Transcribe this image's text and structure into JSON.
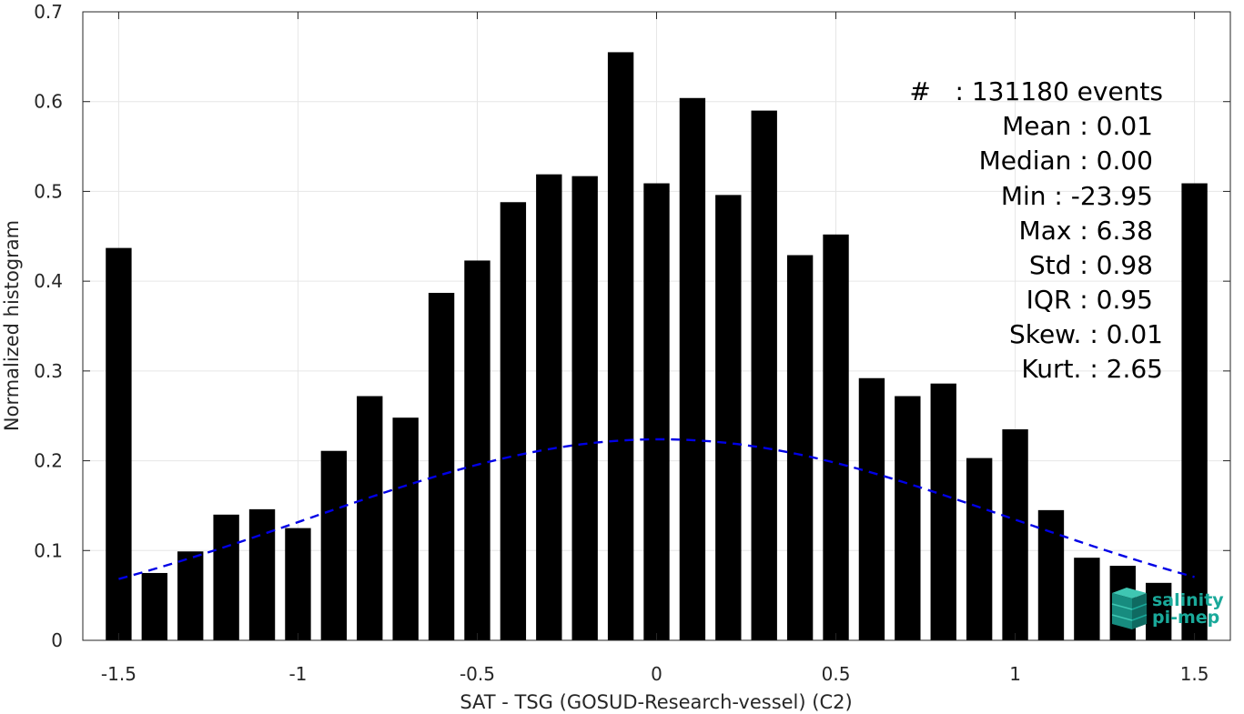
{
  "chart_data": {
    "type": "bar",
    "xlabel": "SAT - TSG (GOSUD-Research-vessel) (C2)",
    "ylabel": "Normalized histogram",
    "xlim": [
      -1.6,
      1.6
    ],
    "ylim": [
      0,
      0.7
    ],
    "xticks": [
      -1.5,
      -1,
      -0.5,
      0,
      0.5,
      1,
      1.5
    ],
    "xtick_labels": [
      "-1.5",
      "-1",
      "-0.5",
      "0",
      "0.5",
      "1",
      "1.5"
    ],
    "yticks": [
      0,
      0.1,
      0.2,
      0.3,
      0.4,
      0.5,
      0.6,
      0.7
    ],
    "ytick_labels": [
      "0",
      "0.1",
      "0.2",
      "0.3",
      "0.4",
      "0.5",
      "0.6",
      "0.7"
    ],
    "grid": true,
    "bar_color": "#000000",
    "bars": {
      "x": [
        -1.5,
        -1.4,
        -1.3,
        -1.2,
        -1.1,
        -1.0,
        -0.9,
        -0.8,
        -0.7,
        -0.6,
        -0.5,
        -0.4,
        -0.3,
        -0.2,
        -0.1,
        0.0,
        0.1,
        0.2,
        0.3,
        0.4,
        0.5,
        0.6,
        0.7,
        0.8,
        0.9,
        1.0,
        1.1,
        1.2,
        1.3,
        1.4,
        1.5
      ],
      "values": [
        0.437,
        0.075,
        0.099,
        0.14,
        0.146,
        0.125,
        0.211,
        0.272,
        0.248,
        0.387,
        0.423,
        0.488,
        0.519,
        0.517,
        0.655,
        0.509,
        0.604,
        0.496,
        0.59,
        0.429,
        0.452,
        0.292,
        0.272,
        0.286,
        0.203,
        0.235,
        0.145,
        0.092,
        0.083,
        0.064,
        0.509
      ]
    },
    "fit_curve": {
      "style": "dashed",
      "color": "#0000e6",
      "mean": 0.01,
      "std": 0.98,
      "x_range": [
        -1.5,
        1.5
      ],
      "note_values": "gaussian evaluated from printed mean and std"
    }
  },
  "stats": {
    "lines": [
      "#   : 131180 events",
      "Mean : 0.01",
      "Median : 0.00",
      "Min : -23.95",
      "Max : 6.38",
      "Std : 0.98",
      "IQR : 0.95",
      "Skew. : 0.01",
      "Kurt. : 2.65"
    ]
  },
  "logo": {
    "line1": "salinity",
    "line2": "pi-mep",
    "color": "#1aa99a"
  }
}
